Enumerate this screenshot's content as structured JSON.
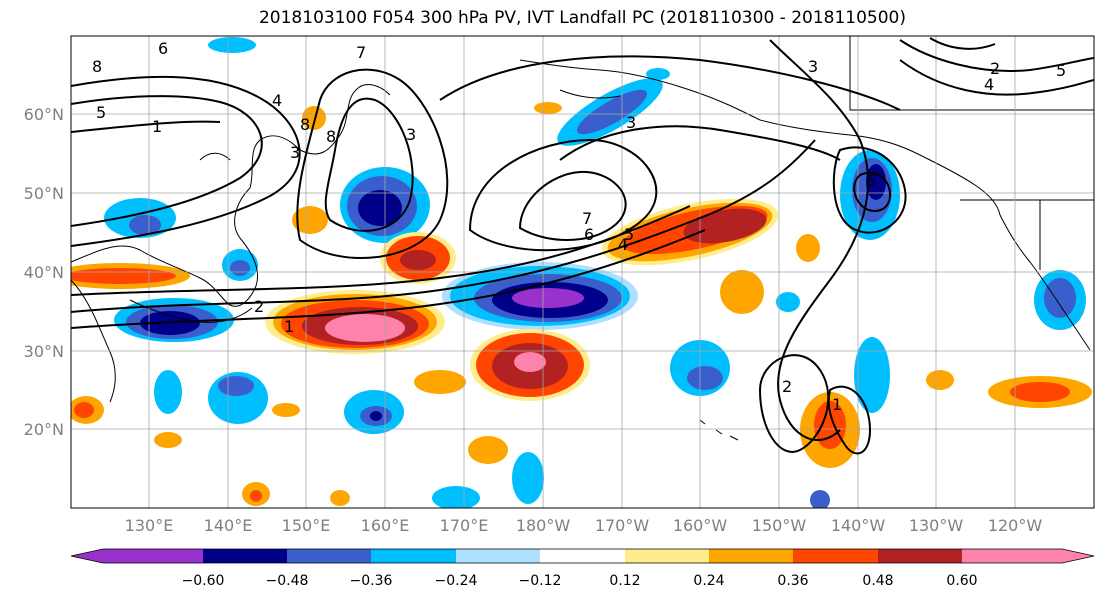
{
  "title": "2018103100 F054 300 hPa PV, IVT Landfall PC (2018110300 - 2018110500)",
  "latitude_labels": [
    "60°N",
    "50°N",
    "40°N",
    "30°N",
    "20°N"
  ],
  "longitude_labels": [
    "130°E",
    "140°E",
    "150°E",
    "160°E",
    "170°E",
    "180°W",
    "170°W",
    "160°W",
    "150°W",
    "140°W",
    "130°W",
    "120°W"
  ],
  "colorbar": {
    "ticks": [
      "−0.60",
      "−0.48",
      "−0.36",
      "−0.24",
      "−0.12",
      "0.12",
      "0.24",
      "0.36",
      "0.48",
      "0.60"
    ],
    "colors": [
      "#9932CC",
      "#00008B",
      "#3A5FCD",
      "#00BFFF",
      "#ADDFFF",
      "#FFFFFF",
      "#FFEC8B",
      "#FFA500",
      "#FF4500",
      "#B22222",
      "#FF82AB"
    ]
  },
  "contour_labels": [
    "8",
    "6",
    "5",
    "1",
    "4",
    "7",
    "3",
    "8",
    "3",
    "8",
    "7",
    "6",
    "4",
    "5",
    "2",
    "1",
    "3",
    "6",
    "4",
    "5",
    "2",
    "3",
    "2",
    "1"
  ]
}
